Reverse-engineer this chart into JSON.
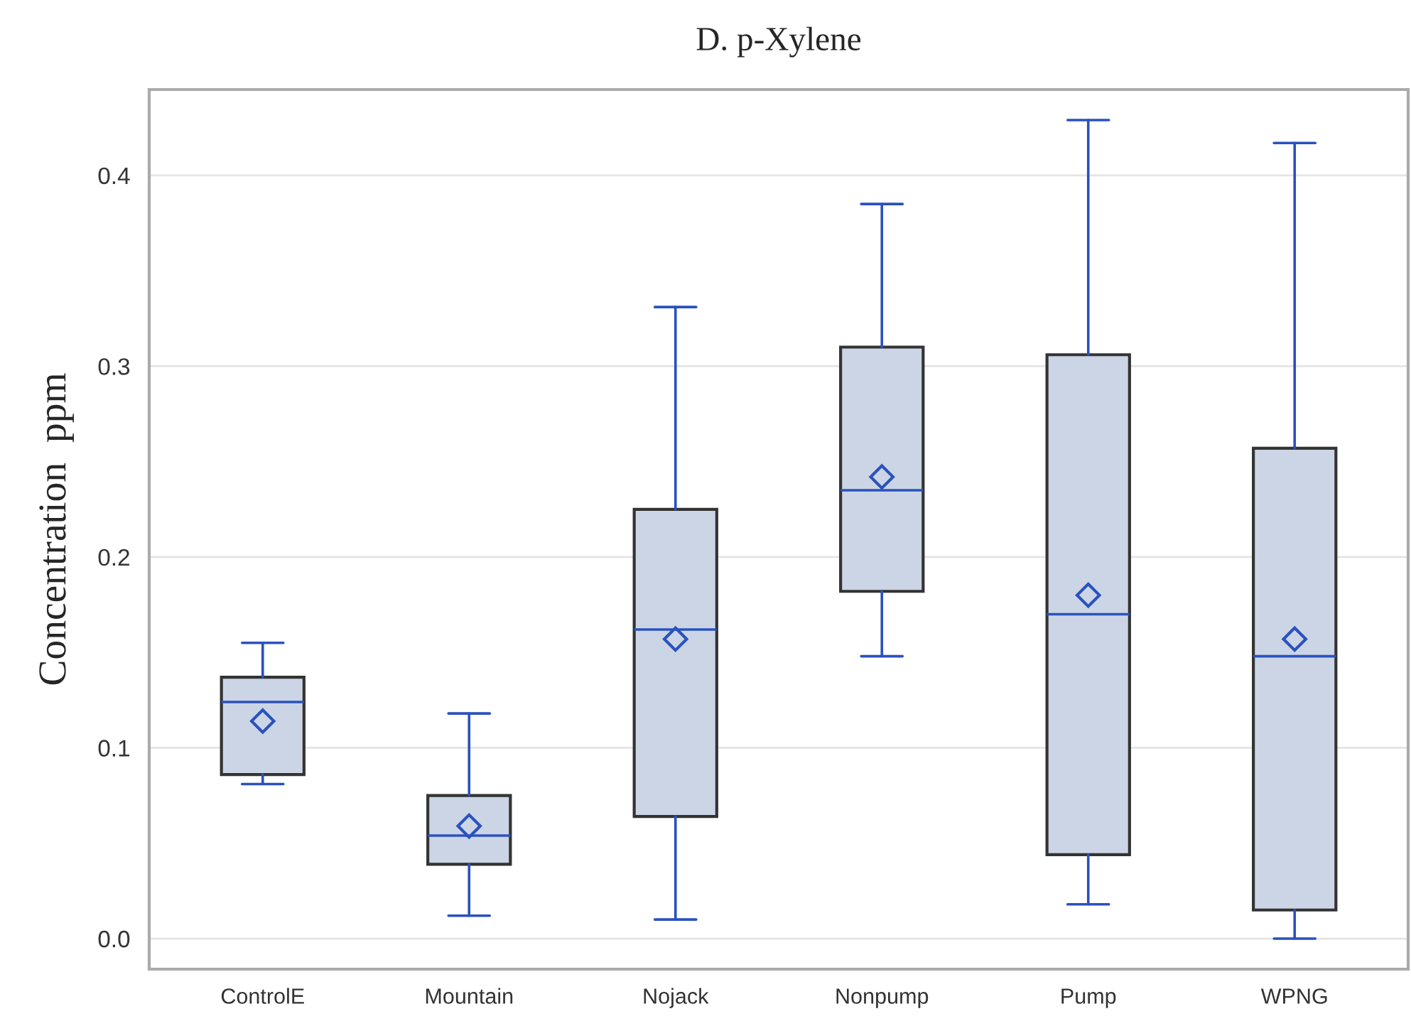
{
  "chart_data": {
    "type": "box",
    "title": "D. p-Xylene",
    "ylabel": "Concentration  ppm",
    "categories": [
      "ControlE",
      "Mountain",
      "Nojack",
      "Nonpump",
      "Pump",
      "WPNG"
    ],
    "color": "#cbd5e5",
    "boxes": [
      {
        "low": 0.081,
        "q1": 0.086,
        "median": 0.124,
        "q3": 0.137,
        "high": 0.155,
        "mean": 0.114
      },
      {
        "low": 0.012,
        "q1": 0.039,
        "median": 0.054,
        "q3": 0.075,
        "high": 0.118,
        "mean": 0.059
      },
      {
        "low": 0.01,
        "q1": 0.064,
        "median": 0.162,
        "q3": 0.225,
        "high": 0.331,
        "mean": 0.157
      },
      {
        "low": 0.148,
        "q1": 0.182,
        "median": 0.235,
        "q3": 0.31,
        "high": 0.385,
        "mean": 0.242
      },
      {
        "low": 0.018,
        "q1": 0.044,
        "median": 0.17,
        "q3": 0.306,
        "high": 0.429,
        "mean": 0.18
      },
      {
        "low": 0.0,
        "q1": 0.015,
        "median": 0.148,
        "q3": 0.257,
        "high": 0.417,
        "mean": 0.157
      }
    ],
    "ylim": [
      -0.016,
      0.445
    ],
    "yticks": [
      {
        "value": 0,
        "label": "0.0"
      },
      0.1,
      0.2,
      0.3,
      0.4
    ],
    "grid": "y",
    "marker": "diamond"
  }
}
